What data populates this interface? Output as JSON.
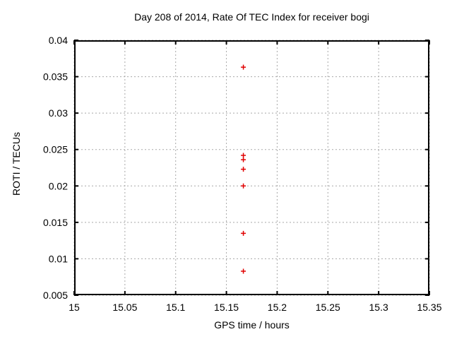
{
  "chart_data": {
    "type": "scatter",
    "title": "Day 208 of 2014, Rate Of TEC Index for receiver bogi",
    "xlabel": "GPS time / hours",
    "ylabel": "ROTI / TECUs",
    "xlim": [
      15,
      15.35
    ],
    "ylim": [
      0.005,
      0.04
    ],
    "x_ticks": {
      "values": [
        15,
        15.05,
        15.1,
        15.15,
        15.2,
        15.25,
        15.3,
        15.35
      ],
      "labels": [
        "15",
        "15.05",
        "15.1",
        "15.15",
        "15.2",
        "15.25",
        "15.3",
        "15.35"
      ]
    },
    "y_ticks": {
      "values": [
        0.005,
        0.01,
        0.015,
        0.02,
        0.025,
        0.03,
        0.035,
        0.04
      ],
      "labels": [
        "0.005",
        "0.01",
        "0.015",
        "0.02",
        "0.025",
        "0.03",
        "0.035",
        "0.04"
      ]
    },
    "grid": {
      "visible": true,
      "style": "dotted",
      "color": "#a8a8a8"
    },
    "legend": "none",
    "border_color": "#000000",
    "background": "#ffffff",
    "series": [
      {
        "name": "ROTI",
        "marker": "plus",
        "color": "#e00000",
        "x": [
          15.1667,
          15.1667,
          15.1667,
          15.1667,
          15.1667,
          15.1667,
          15.1667
        ],
        "y": [
          0.0363,
          0.0242,
          0.0236,
          0.0223,
          0.02,
          0.0135,
          0.0083
        ]
      }
    ]
  }
}
